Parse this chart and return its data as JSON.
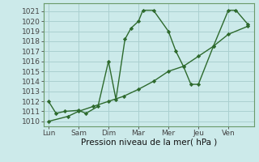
{
  "line1_x": [
    0,
    0.25,
    0.55,
    1.0,
    1.25,
    1.65,
    2.0,
    2.25,
    2.55,
    2.75,
    3.0,
    3.15,
    3.5,
    4.0,
    4.25,
    4.5,
    4.75,
    5.0,
    5.5,
    6.0,
    6.25,
    6.65
  ],
  "line1_y": [
    1012.0,
    1010.8,
    1011.0,
    1011.1,
    1010.8,
    1011.5,
    1016.0,
    1012.2,
    1018.2,
    1019.3,
    1020.0,
    1021.1,
    1021.1,
    1019.0,
    1017.0,
    1015.5,
    1013.7,
    1013.7,
    1017.5,
    1021.1,
    1021.1,
    1019.7
  ],
  "line2_x": [
    0,
    0.65,
    1.0,
    1.5,
    2.0,
    2.5,
    3.0,
    3.5,
    4.0,
    4.5,
    5.0,
    5.5,
    6.0,
    6.65
  ],
  "line2_y": [
    1010.0,
    1010.5,
    1011.0,
    1011.5,
    1012.0,
    1012.5,
    1013.2,
    1014.0,
    1015.0,
    1015.5,
    1016.5,
    1017.5,
    1018.7,
    1019.5
  ],
  "line_color": "#2d6a2d",
  "bg_color": "#cceaea",
  "grid_color": "#aad0d0",
  "xlabel": "Pression niveau de la mer( hPa )",
  "xtick_labels": [
    "Lun",
    "Sam",
    "Dim",
    "Mar",
    "Mer",
    "Jeu",
    "Ven"
  ],
  "xtick_positions": [
    0,
    1,
    2,
    3,
    4,
    5,
    6
  ],
  "ylim": [
    1009.5,
    1021.8
  ],
  "xlim": [
    -0.15,
    6.85
  ],
  "ytick_vals": [
    1010,
    1011,
    1012,
    1013,
    1014,
    1015,
    1016,
    1017,
    1018,
    1019,
    1020,
    1021
  ],
  "marker": "D",
  "marker_size": 2.2,
  "line_width": 1.0
}
